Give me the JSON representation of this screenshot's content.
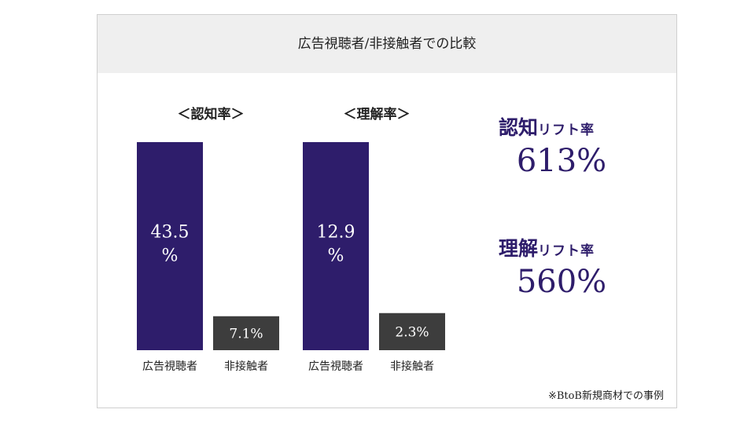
{
  "title": "広告視聴者/非接触者での比較",
  "colors": {
    "primary": "#2e1d6b",
    "secondary": "#3d3d3d",
    "header_bg": "#efefef"
  },
  "chart_data": [
    {
      "type": "bar",
      "title": "＜認知率＞",
      "categories": [
        "広告視聴者",
        "非接触者"
      ],
      "values": [
        43.5,
        7.1
      ],
      "value_labels": [
        "43.5\n%",
        "7.1%"
      ],
      "ylim": [
        0,
        43.5
      ]
    },
    {
      "type": "bar",
      "title": "＜理解率＞",
      "categories": [
        "広告視聴者",
        "非接触者"
      ],
      "values": [
        12.9,
        2.3
      ],
      "value_labels": [
        "12.9\n%",
        "2.3%"
      ],
      "ylim": [
        0,
        12.9
      ]
    }
  ],
  "lifts": [
    {
      "name": "認知",
      "suffix": "リフト率",
      "value": "613%"
    },
    {
      "name": "理解",
      "suffix": "リフト率",
      "value": "560%"
    }
  ],
  "footnote": "※BtoB新規商材での事例"
}
